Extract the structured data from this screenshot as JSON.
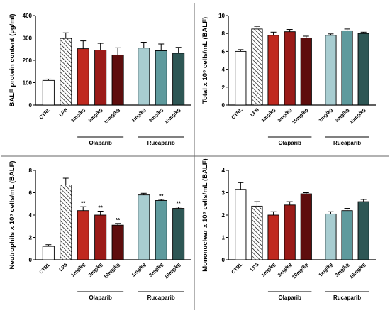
{
  "chart_data": [
    {
      "type": "bar",
      "ylabel": "BALF protein content (µg/ml)",
      "ylim": [
        0,
        400
      ],
      "yticks": [
        "0",
        "100",
        "200",
        "300",
        "400"
      ],
      "categories": [
        "CTRL",
        "LPS",
        "1mg/kg",
        "3mg/kg",
        "10mg/kg",
        "1mg/kg",
        "3mg/kg",
        "10mg/kg"
      ],
      "values": [
        110,
        298,
        252,
        246,
        224,
        255,
        243,
        232
      ],
      "errors": [
        6,
        25,
        35,
        30,
        32,
        26,
        30,
        26
      ],
      "significance": [
        "",
        "",
        "",
        "",
        "",
        "",
        "",
        ""
      ],
      "groups": [
        {
          "label": "Olaparib",
          "from": 2,
          "to": 4
        },
        {
          "label": "Rucaparib",
          "from": 5,
          "to": 7
        }
      ]
    },
    {
      "type": "bar",
      "ylabel": "Total x 10⁶ cells/mL (BALF)",
      "ylim": [
        0,
        10
      ],
      "yticks": [
        "0",
        "2",
        "4",
        "6",
        "8",
        "10"
      ],
      "categories": [
        "CTRL",
        "LPS",
        "1mg/kg",
        "3mg/kg",
        "10mg/kg",
        "1mg/kg",
        "3mg/kg",
        "10mg/kg"
      ],
      "values": [
        6.0,
        8.5,
        7.8,
        8.2,
        7.5,
        7.8,
        8.3,
        8.0
      ],
      "errors": [
        0.2,
        0.3,
        0.35,
        0.25,
        0.2,
        0.15,
        0.2,
        0.15
      ],
      "significance": [
        "",
        "",
        "",
        "",
        "",
        "",
        "",
        ""
      ],
      "groups": [
        {
          "label": "Olaparib",
          "from": 2,
          "to": 4
        },
        {
          "label": "Rucaparib",
          "from": 5,
          "to": 7
        }
      ]
    },
    {
      "type": "bar",
      "ylabel": "Neutrophils x 10⁶ cells/mL (BALF)",
      "ylim": [
        0,
        8
      ],
      "yticks": [
        "0",
        "2",
        "4",
        "6",
        "8"
      ],
      "categories": [
        "CTRL",
        "LPS",
        "1mg/kg",
        "3mg/kg",
        "10mg/kg",
        "1mg/kg",
        "3mg/kg",
        "10mg/kg"
      ],
      "values": [
        1.2,
        6.7,
        4.4,
        4.0,
        3.1,
        5.8,
        5.3,
        4.6
      ],
      "errors": [
        0.15,
        0.6,
        0.35,
        0.35,
        0.15,
        0.15,
        0.1,
        0.12
      ],
      "significance": [
        "",
        "",
        "**",
        "**",
        "**",
        "",
        "**",
        "**"
      ],
      "groups": [
        {
          "label": "Olaparib",
          "from": 2,
          "to": 4
        },
        {
          "label": "Rucaparib",
          "from": 5,
          "to": 7
        }
      ]
    },
    {
      "type": "bar",
      "ylabel": "Mononuclear x 10⁶ cells/mL (BALF)",
      "ylim": [
        0,
        4
      ],
      "yticks": [
        "0",
        "1",
        "2",
        "3",
        "4"
      ],
      "categories": [
        "CTRL",
        "LPS",
        "1mg/kg",
        "3mg/kg",
        "10mg/kg",
        "1mg/kg",
        "3mg/kg",
        "10mg/kg"
      ],
      "values": [
        3.15,
        2.4,
        2.0,
        2.45,
        2.95,
        2.05,
        2.2,
        2.6
      ],
      "errors": [
        0.3,
        0.2,
        0.15,
        0.15,
        0.05,
        0.1,
        0.1,
        0.1
      ],
      "significance": [
        "",
        "",
        "",
        "",
        "",
        "",
        "",
        ""
      ],
      "groups": [
        {
          "label": "Olaparib",
          "from": 2,
          "to": 4
        },
        {
          "label": "Rucaparib",
          "from": 5,
          "to": 7
        }
      ]
    }
  ],
  "bar_colors": [
    "#ffffff",
    "hatched",
    "#c0291f",
    "#9b1b18",
    "#5e0d0d",
    "#a8cdd1",
    "#5e9a9d",
    "#2e5755"
  ]
}
